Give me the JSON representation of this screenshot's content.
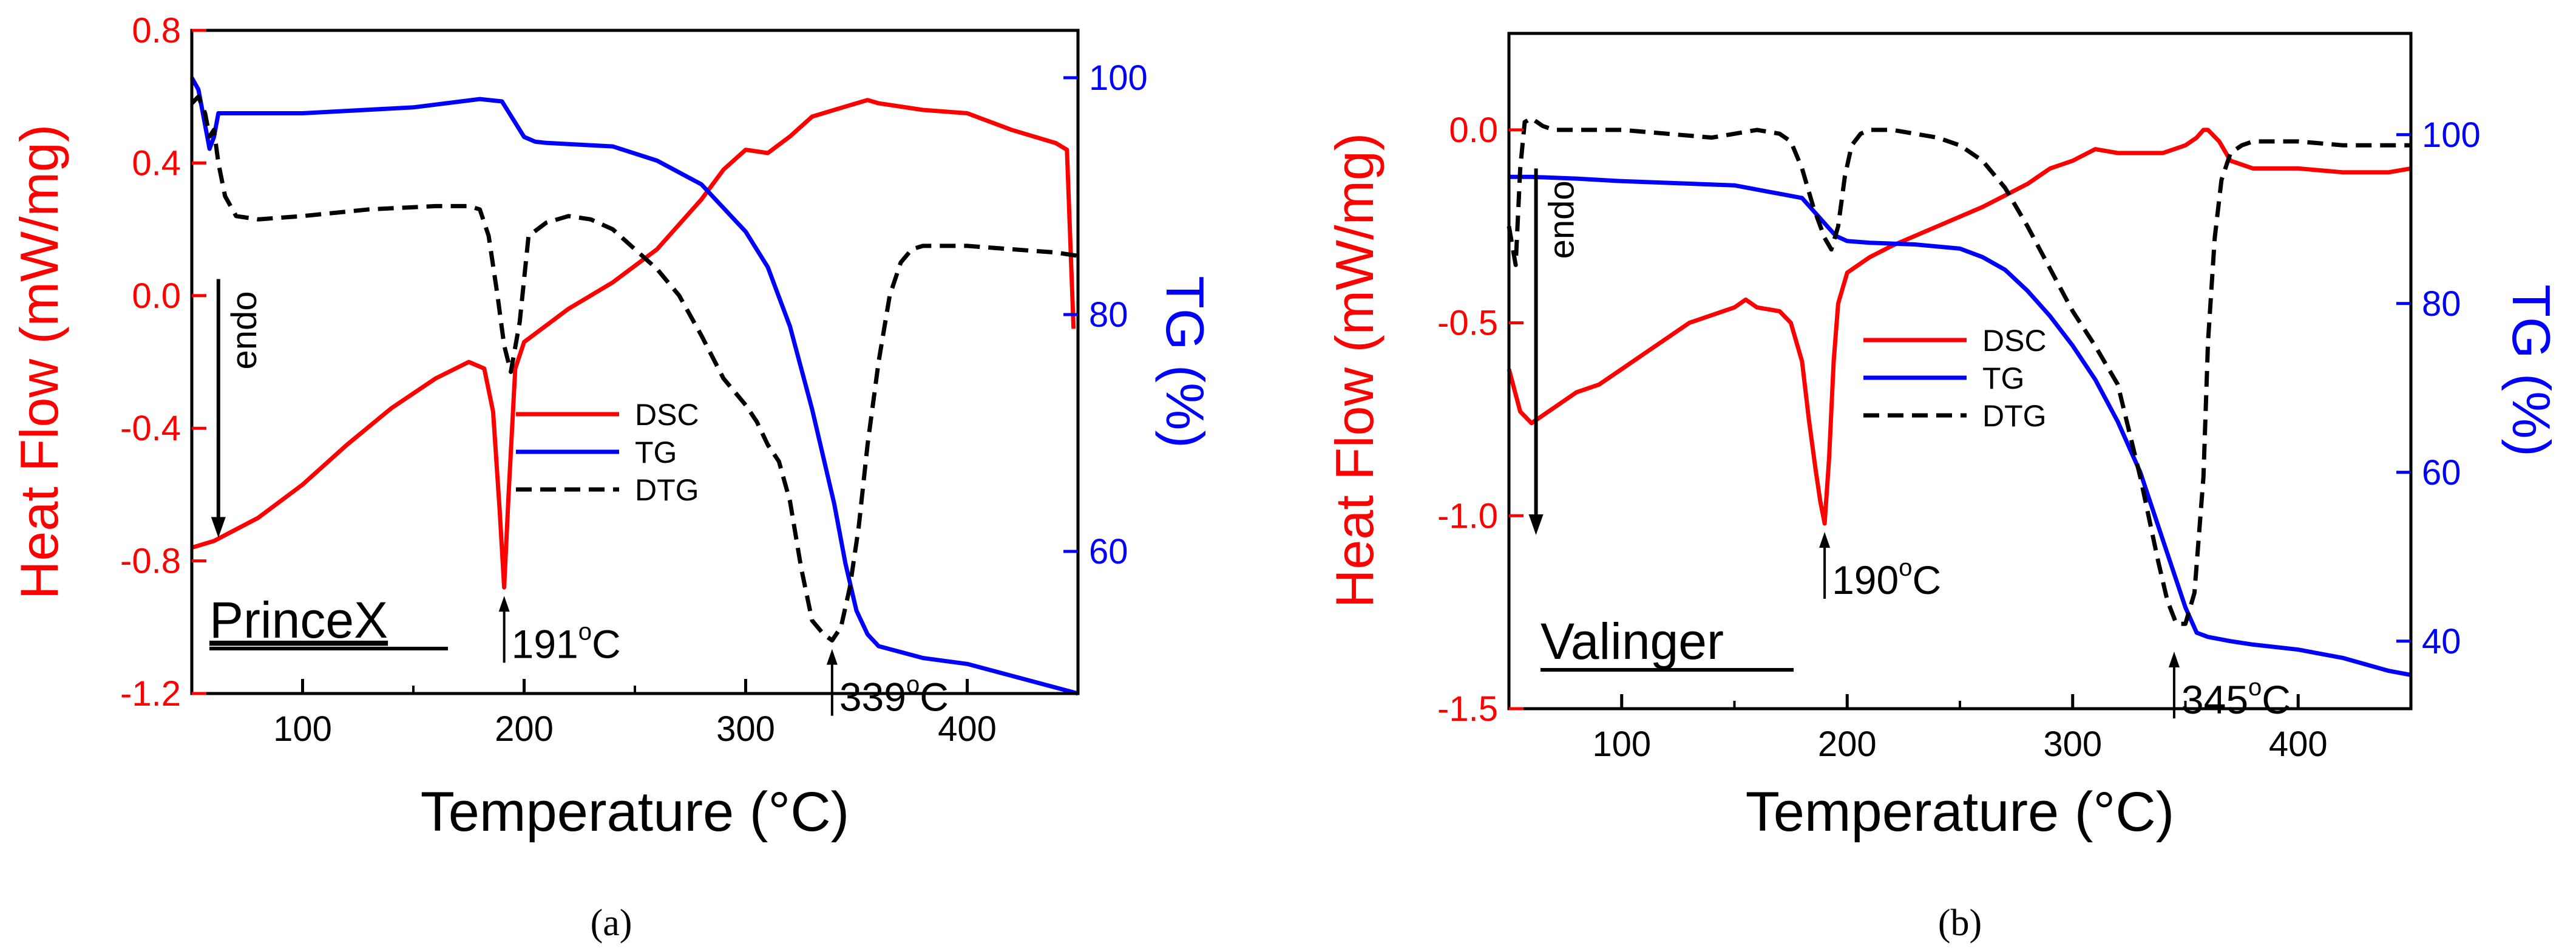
{
  "colors": {
    "dsc": "#ff0000",
    "tg": "#0000ff",
    "dtg": "#000000",
    "axis": "#000000"
  },
  "chart_data": [
    {
      "type": "line",
      "panel_caption": "(a)",
      "sample_label": "PrinceX",
      "xlabel": "Temperature (°C)",
      "ylabel_left": "Heat Flow (mW/mg)",
      "ylabel_right": "TG (%)",
      "xlim": [
        50,
        450
      ],
      "ylim_left": [
        -1.2,
        0.8
      ],
      "ylim_right": [
        48,
        104
      ],
      "x_ticks": [
        "100",
        "200",
        "300",
        "400"
      ],
      "y_left_ticks": [
        "-1.2",
        "-0.8",
        "-0.4",
        "0.0",
        "0.4",
        "0.8"
      ],
      "y_right_ticks": [
        "60",
        "80",
        "100"
      ],
      "legend": [
        "DSC",
        "TG",
        "DTG"
      ],
      "endo_label": "endo",
      "endo_arrow": {
        "x": 62,
        "y_from": 0.05,
        "y_to": -0.73
      },
      "peak_annotations": [
        {
          "text": "191",
          "deg": "o",
          "unit": "C",
          "x": 191,
          "y_tip": -0.88
        },
        {
          "text": "339",
          "deg": "o",
          "unit": "C",
          "x": 339,
          "y_tip": -1.04
        }
      ],
      "series": [
        {
          "name": "DSC",
          "axis": "left",
          "color": "#ff0000",
          "x": [
            50,
            60,
            80,
            100,
            120,
            140,
            160,
            175,
            182,
            186,
            189,
            191,
            193,
            196,
            200,
            210,
            220,
            240,
            260,
            280,
            290,
            300,
            310,
            320,
            330,
            340,
            350,
            355,
            360,
            380,
            400,
            420,
            440,
            445,
            448
          ],
          "y": [
            -0.76,
            -0.74,
            -0.67,
            -0.57,
            -0.45,
            -0.34,
            -0.25,
            -0.2,
            -0.22,
            -0.35,
            -0.65,
            -0.88,
            -0.6,
            -0.22,
            -0.14,
            -0.09,
            -0.04,
            0.04,
            0.14,
            0.29,
            0.38,
            0.44,
            0.43,
            0.48,
            0.54,
            0.56,
            0.58,
            0.59,
            0.58,
            0.56,
            0.55,
            0.5,
            0.46,
            0.44,
            -0.1
          ]
        },
        {
          "name": "TG",
          "axis": "right",
          "color": "#0000ff",
          "x": [
            50,
            53,
            56,
            58,
            60,
            62,
            65,
            80,
            100,
            150,
            180,
            190,
            195,
            200,
            205,
            210,
            220,
            240,
            260,
            280,
            300,
            310,
            320,
            330,
            340,
            345,
            350,
            355,
            360,
            380,
            400,
            420,
            440,
            450
          ],
          "y": [
            100,
            99,
            96,
            94,
            95,
            97,
            97,
            97,
            97,
            97.5,
            98.2,
            98,
            96.5,
            95,
            94.6,
            94.5,
            94.4,
            94.2,
            93,
            91,
            87,
            84,
            79,
            72,
            64,
            59,
            55,
            53,
            52,
            51,
            50.5,
            49.5,
            48.5,
            48
          ]
        },
        {
          "name": "DTG",
          "axis": "left",
          "color": "#000000",
          "x": [
            50,
            53,
            56,
            58,
            60,
            62,
            65,
            70,
            80,
            100,
            130,
            160,
            175,
            180,
            184,
            188,
            191,
            194,
            198,
            202,
            210,
            220,
            230,
            240,
            250,
            260,
            270,
            280,
            290,
            300,
            305,
            310,
            315,
            320,
            325,
            330,
            335,
            339,
            343,
            347,
            351,
            355,
            360,
            365,
            370,
            375,
            380,
            390,
            400,
            420,
            440,
            450
          ],
          "y": [
            0.58,
            0.6,
            0.55,
            0.48,
            0.5,
            0.4,
            0.3,
            0.24,
            0.23,
            0.24,
            0.26,
            0.27,
            0.27,
            0.26,
            0.18,
            0.0,
            -0.15,
            -0.23,
            -0.08,
            0.18,
            0.22,
            0.24,
            0.23,
            0.2,
            0.14,
            0.08,
            0.0,
            -0.12,
            -0.25,
            -0.33,
            -0.38,
            -0.45,
            -0.5,
            -0.62,
            -0.82,
            -0.98,
            -1.02,
            -1.04,
            -1.0,
            -0.88,
            -0.7,
            -0.45,
            -0.2,
            0.0,
            0.1,
            0.14,
            0.15,
            0.15,
            0.15,
            0.14,
            0.13,
            0.12
          ]
        }
      ]
    },
    {
      "type": "line",
      "panel_caption": "(b)",
      "sample_label": "Valinger",
      "xlabel": "Temperature (°C)",
      "ylabel_left": "Heat Flow (mW/mg)",
      "ylabel_right": "TG (%)",
      "xlim": [
        50,
        450
      ],
      "ylim_left": [
        -1.5,
        0.25
      ],
      "ylim_right": [
        32,
        112
      ],
      "x_ticks": [
        "100",
        "200",
        "300",
        "400"
      ],
      "y_left_ticks": [
        "-1.5",
        "-1.0",
        "-0.5",
        "0.0"
      ],
      "y_right_ticks": [
        "40",
        "60",
        "80",
        "100"
      ],
      "legend": [
        "DSC",
        "TG",
        "DTG"
      ],
      "endo_label": "endo",
      "endo_arrow": {
        "x": 62,
        "y_from": -0.1,
        "y_to": -1.05
      },
      "peak_annotations": [
        {
          "text": "190",
          "deg": "o",
          "unit": "C",
          "x": 190,
          "y_tip": -1.02
        },
        {
          "text": "345",
          "deg": "o",
          "unit": "C",
          "x": 345,
          "y_tip": -1.33
        }
      ],
      "series": [
        {
          "name": "DSC",
          "axis": "left",
          "color": "#ff0000",
          "x": [
            50,
            55,
            60,
            70,
            80,
            90,
            100,
            110,
            120,
            130,
            140,
            150,
            155,
            160,
            170,
            175,
            180,
            183,
            186,
            188,
            190,
            192,
            194,
            196,
            200,
            210,
            220,
            240,
            260,
            280,
            290,
            300,
            310,
            320,
            330,
            340,
            350,
            355,
            358,
            360,
            365,
            370,
            380,
            400,
            420,
            440,
            450
          ],
          "y": [
            -0.62,
            -0.73,
            -0.76,
            -0.72,
            -0.68,
            -0.66,
            -0.62,
            -0.58,
            -0.54,
            -0.5,
            -0.48,
            -0.46,
            -0.44,
            -0.46,
            -0.47,
            -0.5,
            -0.6,
            -0.75,
            -0.88,
            -0.96,
            -1.02,
            -0.85,
            -0.6,
            -0.45,
            -0.37,
            -0.33,
            -0.3,
            -0.25,
            -0.2,
            -0.14,
            -0.1,
            -0.08,
            -0.05,
            -0.06,
            -0.06,
            -0.06,
            -0.04,
            -0.02,
            0.0,
            0.0,
            -0.03,
            -0.08,
            -0.1,
            -0.1,
            -0.11,
            -0.11,
            -0.1
          ]
        },
        {
          "name": "TG",
          "axis": "right",
          "color": "#0000ff",
          "x": [
            50,
            60,
            80,
            100,
            150,
            170,
            180,
            190,
            195,
            200,
            210,
            230,
            250,
            260,
            270,
            280,
            290,
            300,
            310,
            320,
            330,
            340,
            345,
            350,
            355,
            360,
            370,
            380,
            400,
            420,
            440,
            450
          ],
          "y": [
            95,
            95,
            94.8,
            94.5,
            94,
            93,
            92.5,
            89.5,
            88,
            87.4,
            87.2,
            87,
            86.5,
            85.5,
            84,
            81.5,
            78.5,
            75,
            71,
            66,
            60,
            52,
            48,
            44,
            41,
            40.5,
            40,
            39.6,
            39,
            38,
            36.5,
            36
          ]
        },
        {
          "name": "DTG",
          "axis": "left",
          "color": "#000000",
          "x": [
            50,
            53,
            55,
            57,
            60,
            65,
            70,
            80,
            100,
            120,
            140,
            160,
            170,
            175,
            180,
            185,
            190,
            193,
            196,
            199,
            202,
            206,
            210,
            220,
            230,
            240,
            250,
            260,
            270,
            280,
            290,
            300,
            310,
            320,
            330,
            338,
            342,
            346,
            350,
            354,
            358,
            360,
            363,
            366,
            370,
            375,
            380,
            390,
            400,
            420,
            440,
            450
          ],
          "y": [
            -0.25,
            -0.35,
            -0.1,
            0.02,
            0.03,
            0.01,
            0.0,
            0.0,
            0.0,
            -0.01,
            -0.02,
            0.0,
            -0.01,
            -0.03,
            -0.1,
            -0.2,
            -0.28,
            -0.31,
            -0.25,
            -0.12,
            -0.04,
            -0.01,
            0.0,
            0.0,
            -0.01,
            -0.02,
            -0.04,
            -0.08,
            -0.15,
            -0.25,
            -0.36,
            -0.47,
            -0.56,
            -0.66,
            -0.9,
            -1.12,
            -1.22,
            -1.28,
            -1.28,
            -1.2,
            -0.9,
            -0.55,
            -0.28,
            -0.13,
            -0.06,
            -0.04,
            -0.03,
            -0.03,
            -0.03,
            -0.04,
            -0.04,
            -0.04
          ]
        }
      ]
    }
  ]
}
